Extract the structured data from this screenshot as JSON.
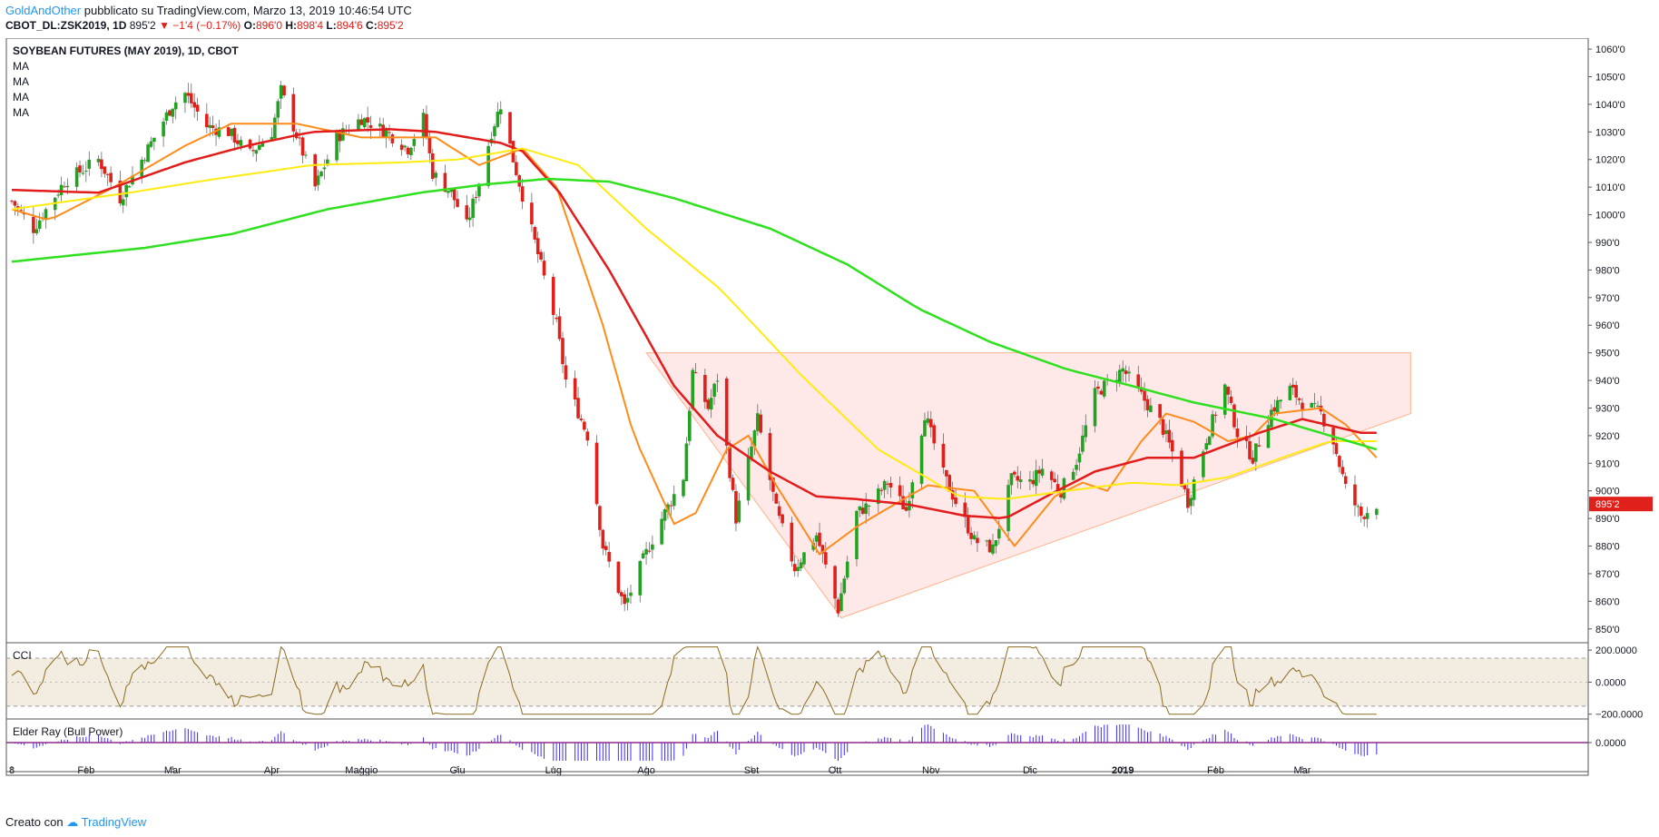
{
  "header": {
    "author": "GoldAndOther",
    "published_text": "pubblicato su TradingView.com, Marzo 13, 2019 10:46:54 UTC",
    "symbol_line": "CBOT_DL:ZSK2019, 1D",
    "last": "895'2",
    "change_arrow": "▼",
    "change": "−1'4 (−0.17%)",
    "open_label": "O:",
    "open": "896'0",
    "high_label": "H:",
    "high": "898'4",
    "low_label": "L:",
    "low": "894'6",
    "close_label": "C:",
    "close": "895'2"
  },
  "footer": {
    "created_with": "Creato con",
    "brand": "TradingView"
  },
  "chart_data": [
    {
      "type": "candlestick",
      "title": "SOYBEAN FUTURES (MAY 2019), 1D, CBOT",
      "indicator_labels": [
        "MA",
        "MA",
        "MA",
        "MA"
      ],
      "ylim": [
        845,
        1062
      ],
      "y_ticks": [
        850,
        860,
        870,
        880,
        890,
        900,
        910,
        920,
        930,
        940,
        950,
        960,
        970,
        980,
        990,
        1000,
        1010,
        1020,
        1030,
        1040,
        1050,
        1060
      ],
      "y_tick_labels": [
        "850'0",
        "860'0",
        "870'0",
        "880'0",
        "890'0",
        "900'0",
        "910'0",
        "920'0",
        "930'0",
        "940'0",
        "950'0",
        "960'0",
        "970'0",
        "980'0",
        "990'0",
        "1000'0",
        "1010'0",
        "1020'0",
        "1030'0",
        "1040'0",
        "1050'0",
        "1060'0"
      ],
      "last_price_label": "895'2",
      "last_price": 895.25,
      "x_labels": [
        "8",
        "Feb",
        "Mar",
        "Apr",
        "Maggio",
        "Giu",
        "Lug",
        "Ago",
        "Set",
        "Ott",
        "Nov",
        "Dic",
        "2019",
        "Feb",
        "Mar"
      ],
      "x_label_bold_index": 12,
      "x_label_dates": [
        "2018-01-08",
        "2018-02-01",
        "2018-03-01",
        "2018-04-02",
        "2018-05-01",
        "2018-06-01",
        "2018-07-02",
        "2018-08-01",
        "2018-09-04",
        "2018-10-01",
        "2018-11-01",
        "2018-12-03",
        "2019-01-02",
        "2019-02-01",
        "2019-03-01"
      ],
      "price_anchors": [
        [
          "2018-01-08",
          1005
        ],
        [
          "2018-01-15",
          995
        ],
        [
          "2018-01-25",
          1012
        ],
        [
          "2018-02-05",
          1020
        ],
        [
          "2018-02-12",
          1006
        ],
        [
          "2018-02-20",
          1022
        ],
        [
          "2018-03-01",
          1040
        ],
        [
          "2018-03-05",
          1044
        ],
        [
          "2018-03-12",
          1032
        ],
        [
          "2018-03-19",
          1030
        ],
        [
          "2018-03-26",
          1022
        ],
        [
          "2018-04-02",
          1030
        ],
        [
          "2018-04-05",
          1045
        ],
        [
          "2018-04-09",
          1032
        ],
        [
          "2018-04-16",
          1010
        ],
        [
          "2018-04-23",
          1028
        ],
        [
          "2018-05-01",
          1035
        ],
        [
          "2018-05-09",
          1030
        ],
        [
          "2018-05-16",
          1024
        ],
        [
          "2018-05-21",
          1035
        ],
        [
          "2018-05-24",
          1015
        ],
        [
          "2018-05-30",
          1008
        ],
        [
          "2018-06-04",
          996
        ],
        [
          "2018-06-08",
          1012
        ],
        [
          "2018-06-12",
          1030
        ],
        [
          "2018-06-15",
          1040
        ],
        [
          "2018-06-19",
          1020
        ],
        [
          "2018-06-26",
          990
        ],
        [
          "2018-07-03",
          960
        ],
        [
          "2018-07-06",
          940
        ],
        [
          "2018-07-13",
          920
        ],
        [
          "2018-07-18",
          880
        ],
        [
          "2018-07-25",
          858
        ],
        [
          "2018-07-31",
          875
        ],
        [
          "2018-08-06",
          890
        ],
        [
          "2018-08-13",
          905
        ],
        [
          "2018-08-16",
          943
        ],
        [
          "2018-08-21",
          930
        ],
        [
          "2018-08-24",
          941
        ],
        [
          "2018-08-30",
          890
        ],
        [
          "2018-09-06",
          926
        ],
        [
          "2018-09-12",
          893
        ],
        [
          "2018-09-18",
          872
        ],
        [
          "2018-09-25",
          884
        ],
        [
          "2018-10-02",
          857
        ],
        [
          "2018-10-08",
          892
        ],
        [
          "2018-10-12",
          895
        ],
        [
          "2018-10-18",
          903
        ],
        [
          "2018-10-24",
          893
        ],
        [
          "2018-10-30",
          928
        ],
        [
          "2018-11-05",
          906
        ],
        [
          "2018-11-09",
          896
        ],
        [
          "2018-11-15",
          882
        ],
        [
          "2018-11-21",
          879
        ],
        [
          "2018-11-27",
          904
        ],
        [
          "2018-12-03",
          903
        ],
        [
          "2018-12-07",
          908
        ],
        [
          "2018-12-13",
          900
        ],
        [
          "2018-12-18",
          911
        ],
        [
          "2018-12-24",
          935
        ],
        [
          "2019-01-02",
          944
        ],
        [
          "2019-01-07",
          936
        ],
        [
          "2019-01-14",
          925
        ],
        [
          "2019-01-18",
          914
        ],
        [
          "2019-01-23",
          896
        ],
        [
          "2019-01-29",
          919
        ],
        [
          "2019-02-04",
          938
        ],
        [
          "2019-02-08",
          921
        ],
        [
          "2019-02-13",
          912
        ],
        [
          "2019-02-19",
          929
        ],
        [
          "2019-02-25",
          937
        ],
        [
          "2019-03-01",
          932
        ],
        [
          "2019-03-07",
          928
        ],
        [
          "2019-03-11",
          918
        ],
        [
          "2019-03-15",
          901
        ],
        [
          "2019-03-20",
          891
        ],
        [
          "2019-03-25",
          895.25
        ]
      ],
      "moving_averages": [
        {
          "color": "#ff8c1a",
          "width": 2,
          "anchors": [
            [
              "2018-01-08",
              1002
            ],
            [
              "2018-01-20",
              998
            ],
            [
              "2018-02-10",
              1010
            ],
            [
              "2018-03-05",
              1025
            ],
            [
              "2018-03-20",
              1033
            ],
            [
              "2018-04-10",
              1033
            ],
            [
              "2018-05-01",
              1028
            ],
            [
              "2018-05-25",
              1028
            ],
            [
              "2018-06-08",
              1018
            ],
            [
              "2018-06-22",
              1024
            ],
            [
              "2018-07-03",
              1010
            ],
            [
              "2018-07-18",
              960
            ],
            [
              "2018-07-28",
              920
            ],
            [
              "2018-08-10",
              888
            ],
            [
              "2018-08-17",
              892
            ],
            [
              "2018-08-27",
              915
            ],
            [
              "2018-09-03",
              920
            ],
            [
              "2018-09-12",
              902
            ],
            [
              "2018-09-26",
              877
            ],
            [
              "2018-10-08",
              887
            ],
            [
              "2018-10-20",
              895
            ],
            [
              "2018-10-31",
              902
            ],
            [
              "2018-11-15",
              900
            ],
            [
              "2018-11-28",
              880
            ],
            [
              "2018-12-11",
              898
            ],
            [
              "2018-12-20",
              903
            ],
            [
              "2018-12-28",
              900
            ],
            [
              "2019-01-08",
              918
            ],
            [
              "2019-01-16",
              928
            ],
            [
              "2019-01-25",
              925
            ],
            [
              "2019-02-05",
              918
            ],
            [
              "2019-02-13",
              920
            ],
            [
              "2019-02-20",
              928
            ],
            [
              "2019-03-07",
              930
            ],
            [
              "2019-03-15",
              924
            ],
            [
              "2019-03-25",
              912
            ]
          ]
        },
        {
          "color": "#e21b1b",
          "width": 2.5,
          "anchors": [
            [
              "2018-01-08",
              1009
            ],
            [
              "2018-02-05",
              1008
            ],
            [
              "2018-03-05",
              1019
            ],
            [
              "2018-03-25",
              1025
            ],
            [
              "2018-04-15",
              1030
            ],
            [
              "2018-05-10",
              1031
            ],
            [
              "2018-05-25",
              1030
            ],
            [
              "2018-06-15",
              1026
            ],
            [
              "2018-06-22",
              1023
            ],
            [
              "2018-07-04",
              1008
            ],
            [
              "2018-07-20",
              980
            ],
            [
              "2018-08-10",
              938
            ],
            [
              "2018-08-24",
              920
            ],
            [
              "2018-09-10",
              907
            ],
            [
              "2018-09-25",
              898
            ],
            [
              "2018-10-08",
              897
            ],
            [
              "2018-10-25",
              895
            ],
            [
              "2018-11-12",
              891
            ],
            [
              "2018-11-25",
              890
            ],
            [
              "2018-12-10",
              899
            ],
            [
              "2018-12-24",
              907
            ],
            [
              "2019-01-10",
              912
            ],
            [
              "2019-01-25",
              912
            ],
            [
              "2019-02-15",
              921
            ],
            [
              "2019-03-01",
              926
            ],
            [
              "2019-03-20",
              921
            ]
          ]
        },
        {
          "color": "#ffeb10",
          "width": 2,
          "anchors": [
            [
              "2018-01-08",
              1002
            ],
            [
              "2018-02-15",
              1008
            ],
            [
              "2018-03-15",
              1013
            ],
            [
              "2018-04-15",
              1018
            ],
            [
              "2018-05-15",
              1019
            ],
            [
              "2018-06-01",
              1020
            ],
            [
              "2018-06-22",
              1024
            ],
            [
              "2018-07-10",
              1018
            ],
            [
              "2018-08-01",
              995
            ],
            [
              "2018-08-25",
              973
            ],
            [
              "2018-09-20",
              942
            ],
            [
              "2018-10-15",
              915
            ],
            [
              "2018-11-10",
              898
            ],
            [
              "2018-11-25",
              897
            ],
            [
              "2018-12-15",
              900
            ],
            [
              "2019-01-05",
              903
            ],
            [
              "2019-01-20",
              902
            ],
            [
              "2019-02-05",
              905
            ],
            [
              "2019-02-25",
              913
            ],
            [
              "2019-03-10",
              918
            ],
            [
              "2019-03-25",
              918
            ]
          ]
        },
        {
          "color": "#2ee01d",
          "width": 2.5,
          "anchors": [
            [
              "2018-01-08",
              983
            ],
            [
              "2018-02-20",
              988
            ],
            [
              "2018-03-20",
              993
            ],
            [
              "2018-04-20",
              1002
            ],
            [
              "2018-05-20",
              1008
            ],
            [
              "2018-06-10",
              1011
            ],
            [
              "2018-06-30",
              1013
            ],
            [
              "2018-07-20",
              1012
            ],
            [
              "2018-08-10",
              1006
            ],
            [
              "2018-09-10",
              995
            ],
            [
              "2018-10-05",
              982
            ],
            [
              "2018-10-28",
              966
            ],
            [
              "2018-11-20",
              954
            ],
            [
              "2018-12-15",
              944
            ],
            [
              "2019-01-05",
              938
            ],
            [
              "2019-01-25",
              932
            ],
            [
              "2019-02-20",
              926
            ],
            [
              "2019-03-10",
              920
            ],
            [
              "2019-03-25",
              915
            ]
          ]
        }
      ],
      "triangle": {
        "top_left_date": "2018-08-01",
        "upper_price": 950,
        "bottom_date": "2018-10-03",
        "bottom_price": 854,
        "right_price_at_end": 928,
        "right_end_date": "2019-04-05"
      }
    },
    {
      "type": "line",
      "title": "CCI",
      "ylim": [
        -230,
        235
      ],
      "y_ticks": [
        200,
        0,
        -200
      ],
      "y_tick_labels": [
        "200.0000",
        "0.0000",
        "−200.0000"
      ],
      "band": [
        -150,
        150
      ],
      "color": "#8b6a1f",
      "seed": 7
    },
    {
      "type": "bar",
      "title": "Elder Ray (Bull Power)",
      "y_ticks": [
        0
      ],
      "y_tick_labels": [
        "0.0000"
      ],
      "color": "#3a2cff",
      "zero_line_color": "#8e2d8e"
    }
  ]
}
